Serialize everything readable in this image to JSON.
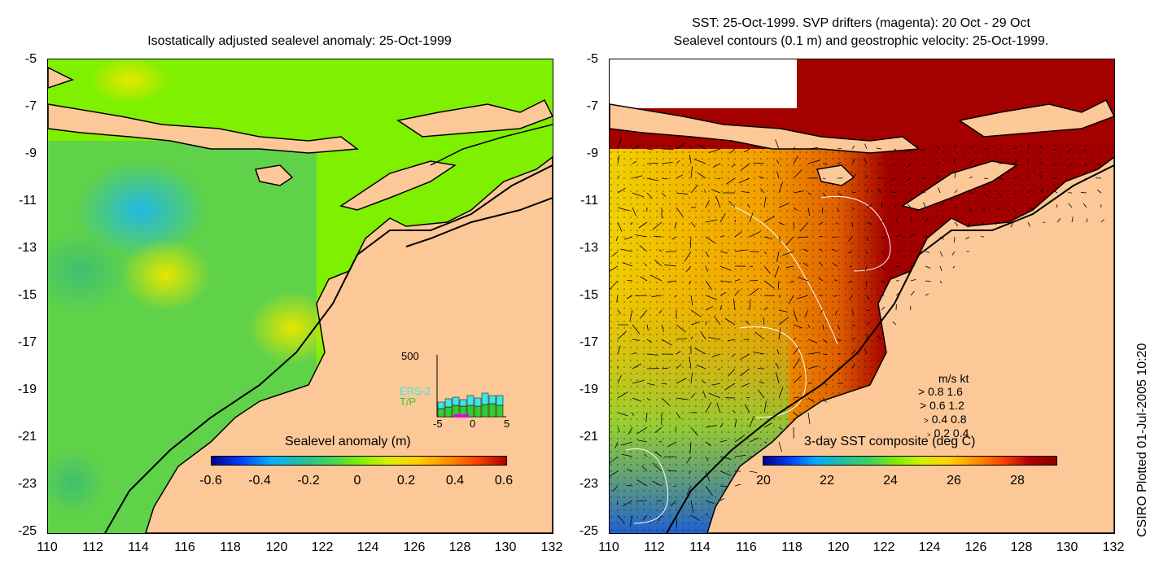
{
  "left_panel": {
    "title": "Isostatically adjusted sealevel anomaly: 25-Oct-1999",
    "yticks": [
      "-5",
      "-7",
      "-9",
      "-11",
      "-13",
      "-15",
      "-17",
      "-19",
      "-21",
      "-23",
      "-25"
    ],
    "xticks": [
      "110",
      "112",
      "114",
      "116",
      "118",
      "120",
      "122",
      "124",
      "126",
      "128",
      "130",
      "132"
    ],
    "colorbar_label": "Sealevel anomaly (m)",
    "colorbar_ticks": [
      "-0.6",
      "-0.4",
      "-0.2",
      "0",
      "0.2",
      "0.4",
      "0.6"
    ],
    "inset": {
      "ytop": "500",
      "series": [
        "ERS-2",
        "T/P"
      ],
      "xticks": [
        "-5",
        "0",
        "5"
      ]
    }
  },
  "right_panel": {
    "title_line1": "SST: 25-Oct-1999. SVP drifters (magenta): 20 Oct - 29 Oct",
    "title_line2": "Sealevel contours (0.1 m) and geostrophic velocity: 25-Oct-1999.",
    "yticks": [
      "-5",
      "-7",
      "-9",
      "-11",
      "-13",
      "-15",
      "-17",
      "-19",
      "-21",
      "-23",
      "-25"
    ],
    "xticks": [
      "110",
      "112",
      "114",
      "116",
      "118",
      "120",
      "122",
      "124",
      "126",
      "128",
      "130",
      "132"
    ],
    "colorbar_label": "3-day SST composite (deg C)",
    "colorbar_ticks": [
      "20",
      "22",
      "24",
      "26",
      "28"
    ],
    "vector_key": {
      "header": "m/s  kt",
      "rows": [
        "0.8  1.6",
        "0.6  1.2",
        "0.4  0.8",
        "0.2  0.4"
      ]
    }
  },
  "stamp": "CSIRO Plotted 01-Jul-2005 10:20",
  "colors": {
    "land": "#fdc898",
    "ocean_green": "#7ef000",
    "sst_hot": "#a50000",
    "coast": "#000000"
  },
  "chart_data": [
    {
      "type": "heatmap",
      "title": "Isostatically adjusted sealevel anomaly: 25-Oct-1999",
      "xlabel": "",
      "ylabel": "",
      "xlim": [
        110,
        132
      ],
      "ylim": [
        -25,
        -5
      ],
      "colorbar": {
        "label": "Sealevel anomaly (m)",
        "range": [
          -0.6,
          0.6
        ]
      },
      "inset_histogram": {
        "series": [
          "ERS-2",
          "T/P"
        ],
        "xlim": [
          -5,
          5
        ],
        "ymax": 500
      }
    },
    {
      "type": "heatmap",
      "title": "SST: 25-Oct-1999. SVP drifters (magenta): 20 Oct - 29 Oct",
      "subtitle": "Sealevel contours (0.1 m) and geostrophic velocity: 25-Oct-1999.",
      "xlim": [
        110,
        132
      ],
      "ylim": [
        -25,
        -5
      ],
      "colorbar": {
        "label": "3-day SST composite (deg C)",
        "range": [
          20,
          29.5
        ]
      },
      "vector_key_ms": [
        0.8,
        0.6,
        0.4,
        0.2
      ],
      "vector_key_kt": [
        1.6,
        1.2,
        0.8,
        0.4
      ]
    }
  ]
}
